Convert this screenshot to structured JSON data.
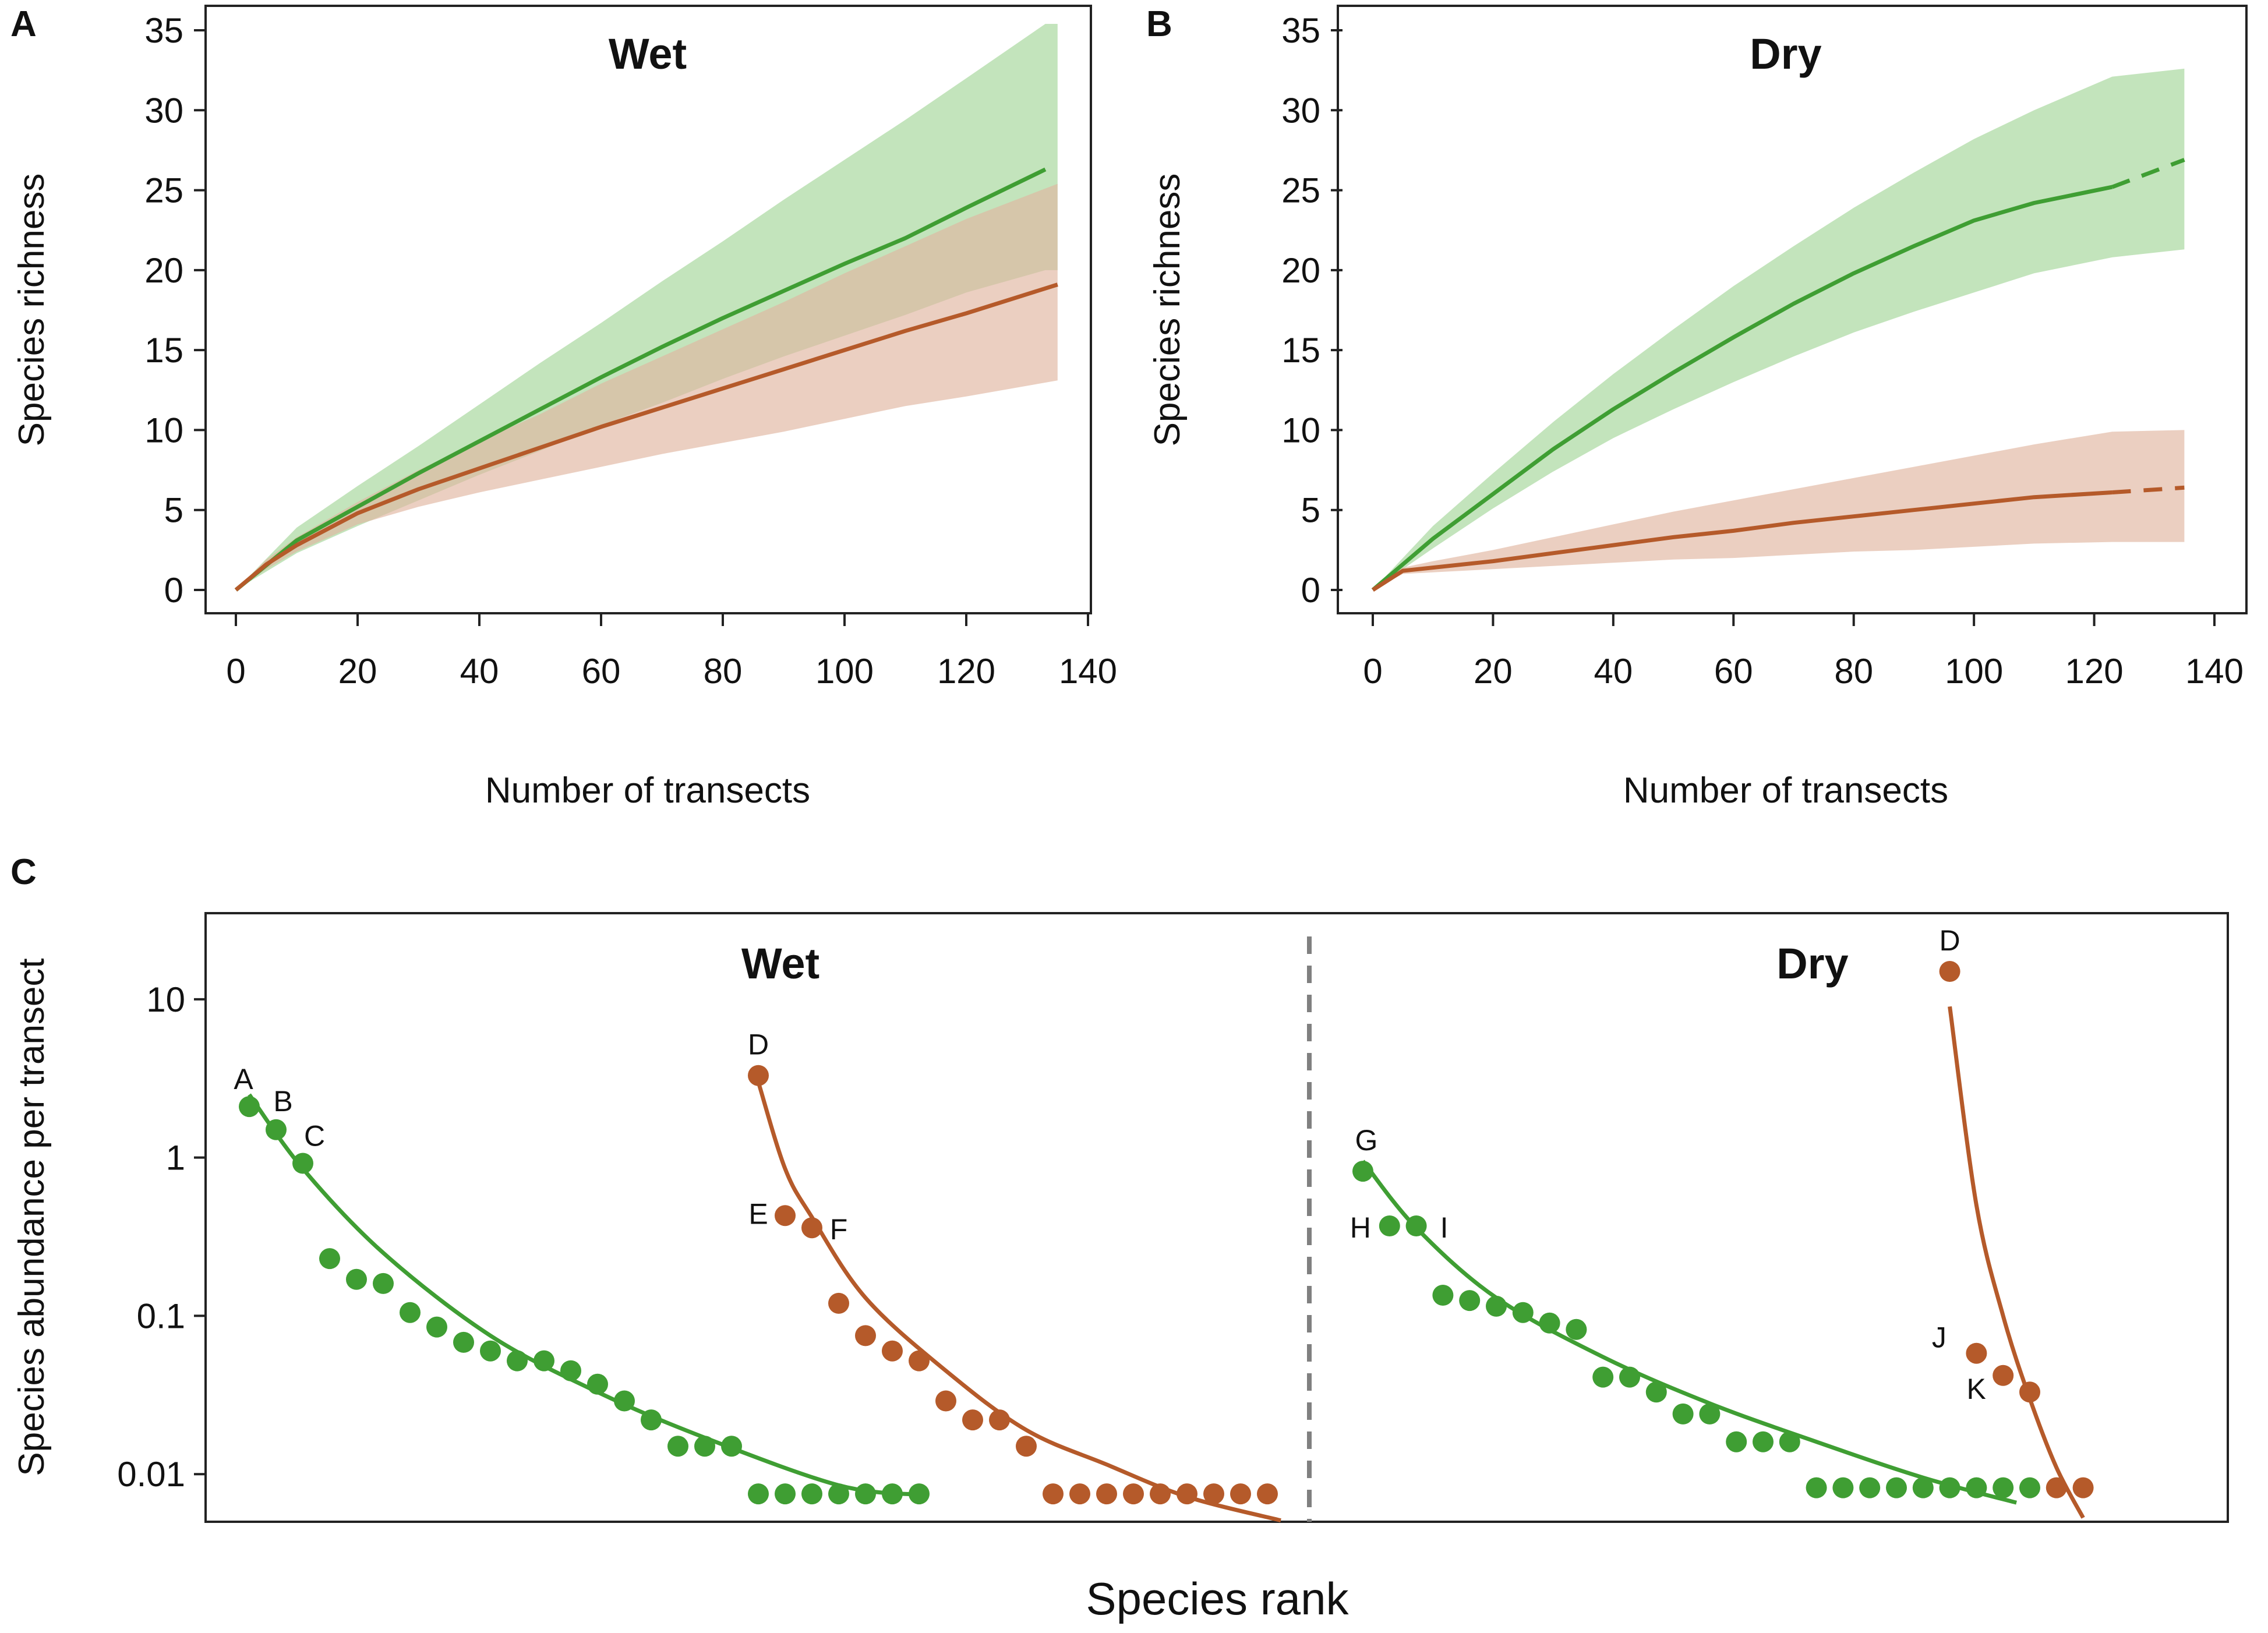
{
  "colors": {
    "forest": "#3f9e33",
    "nonforest": "#b55a2a",
    "forest_band": "#b9dfb0",
    "nonforest_band": "#e0b59f",
    "divider": "#808080"
  },
  "chart_data": [
    {
      "panel": "A",
      "type": "line",
      "title": "Wet",
      "xlabel": "Number of transects",
      "ylabel": "Species richness",
      "xlim": [
        0,
        140
      ],
      "ylim": [
        0,
        35
      ],
      "xticks": [
        0,
        20,
        40,
        60,
        80,
        100,
        120,
        140
      ],
      "yticks": [
        0,
        5,
        10,
        15,
        20,
        25,
        30,
        35
      ],
      "series": [
        {
          "name": "green",
          "x": [
            0,
            10,
            20,
            30,
            40,
            50,
            60,
            70,
            80,
            90,
            100,
            110,
            120,
            133
          ],
          "y": [
            0,
            3.1,
            5.2,
            7.3,
            9.3,
            11.3,
            13.3,
            15.2,
            17.0,
            18.7,
            20.4,
            22.0,
            23.9,
            26.3
          ],
          "lower": [
            0,
            2.3,
            4.0,
            5.6,
            7.2,
            8.7,
            10.3,
            11.7,
            13.2,
            14.6,
            15.9,
            17.2,
            18.6,
            20.0
          ],
          "upper": [
            0,
            3.9,
            6.5,
            9.0,
            11.6,
            14.2,
            16.7,
            19.3,
            21.8,
            24.4,
            26.9,
            29.4,
            32.0,
            35.4
          ],
          "ci_x_end": 135
        },
        {
          "name": "brown",
          "x": [
            0,
            5,
            10,
            20,
            30,
            40,
            50,
            60,
            70,
            80,
            90,
            100,
            110,
            120,
            135
          ],
          "y": [
            0,
            1.6,
            2.8,
            4.8,
            6.3,
            7.6,
            8.9,
            10.2,
            11.4,
            12.6,
            13.8,
            15.0,
            16.2,
            17.3,
            19.1
          ],
          "lower": [
            0,
            1.3,
            2.4,
            4.1,
            5.2,
            6.1,
            6.9,
            7.7,
            8.5,
            9.2,
            9.9,
            10.7,
            11.5,
            12.1,
            13.1
          ],
          "upper": [
            0,
            1.9,
            3.3,
            5.5,
            7.5,
            9.3,
            11.0,
            12.9,
            14.6,
            16.3,
            18.0,
            19.8,
            21.5,
            23.2,
            25.4
          ]
        }
      ]
    },
    {
      "panel": "B",
      "type": "line",
      "title": "Dry",
      "xlabel": "Number of transects",
      "ylabel": "Species richness",
      "xlim": [
        0,
        140
      ],
      "ylim": [
        0,
        35
      ],
      "xticks": [
        0,
        20,
        40,
        60,
        80,
        100,
        120,
        140
      ],
      "yticks": [
        0,
        5,
        10,
        15,
        20,
        25,
        30,
        35
      ],
      "series": [
        {
          "name": "green",
          "x": [
            0,
            10,
            20,
            30,
            40,
            50,
            60,
            70,
            80,
            90,
            100,
            110,
            123
          ],
          "y": [
            0,
            3.2,
            6.0,
            8.8,
            11.3,
            13.6,
            15.8,
            17.9,
            19.8,
            21.5,
            23.1,
            24.2,
            25.2
          ],
          "lower": [
            0,
            2.6,
            5.1,
            7.4,
            9.5,
            11.3,
            13.0,
            14.6,
            16.1,
            17.4,
            18.6,
            19.8,
            20.8
          ],
          "upper": [
            0,
            4.0,
            7.3,
            10.5,
            13.5,
            16.3,
            19.0,
            21.5,
            23.9,
            26.1,
            28.2,
            30.0,
            32.1
          ],
          "extrapolated_x": [
            123,
            135
          ],
          "extrapolated_y": [
            25.2,
            26.9
          ],
          "ci_x_end": 135,
          "ci_end": [
            21.3,
            32.6
          ]
        },
        {
          "name": "brown",
          "x": [
            0,
            5,
            10,
            20,
            30,
            40,
            50,
            60,
            70,
            80,
            90,
            100,
            110,
            123
          ],
          "y": [
            0,
            1.2,
            1.4,
            1.8,
            2.3,
            2.8,
            3.3,
            3.7,
            4.2,
            4.6,
            5.0,
            5.4,
            5.8,
            6.1
          ],
          "lower": [
            0,
            1.0,
            1.1,
            1.3,
            1.5,
            1.7,
            1.9,
            2.0,
            2.2,
            2.4,
            2.5,
            2.7,
            2.9,
            3.0
          ],
          "upper": [
            0,
            1.4,
            1.8,
            2.5,
            3.3,
            4.1,
            4.9,
            5.6,
            6.3,
            7.0,
            7.7,
            8.4,
            9.1,
            9.9
          ],
          "extrapolated_x": [
            123,
            135
          ],
          "extrapolated_y": [
            6.1,
            6.4
          ],
          "ci_x_end": 135,
          "ci_end": [
            3.0,
            10.0
          ]
        }
      ]
    },
    {
      "panel": "C",
      "type": "scatter",
      "xlabel": "Species rank",
      "ylabel": "Species abundance per transect",
      "yscale": "log",
      "ylim": [
        0.005,
        35
      ],
      "yticks": [
        0.01,
        0.1,
        1,
        10
      ],
      "ytick_labels": [
        "0.01",
        "0.1",
        "1",
        "10"
      ],
      "sections": [
        "Wet",
        "Dry"
      ],
      "series": [
        {
          "name": "Wet green",
          "section": "Wet",
          "color": "forest",
          "x": [
            1,
            2,
            3,
            4,
            5,
            6,
            7,
            8,
            9,
            10,
            11,
            12,
            13,
            14,
            15,
            16,
            17,
            18,
            19,
            20,
            21,
            22,
            23,
            24,
            25,
            26
          ],
          "y": [
            2.1,
            1.5,
            0.92,
            0.23,
            0.17,
            0.16,
            0.105,
            0.085,
            0.068,
            0.06,
            0.052,
            0.052,
            0.045,
            0.037,
            0.029,
            0.022,
            0.015,
            0.015,
            0.015,
            0.0075,
            0.0075,
            0.0075,
            0.0075,
            0.0075,
            0.0075,
            0.0075
          ],
          "labels": [
            "A",
            "B",
            "C",
            "",
            "",
            "",
            "",
            "",
            "",
            "",
            "",
            "",
            "",
            "",
            "",
            "",
            "",
            "",
            "",
            "",
            "",
            "",
            "",
            "",
            "",
            ""
          ],
          "fit_x": [
            1,
            3,
            6,
            10,
            14,
            18,
            23,
            26
          ],
          "fit_y": [
            2.5,
            0.85,
            0.25,
            0.075,
            0.033,
            0.017,
            0.0085,
            0.0074
          ]
        },
        {
          "name": "Wet brown",
          "section": "Wet",
          "color": "nonforest",
          "x": [
            20,
            21,
            22,
            23,
            24,
            25,
            26,
            27,
            28,
            29,
            30,
            31,
            32,
            33,
            34,
            35,
            36,
            37,
            38,
            39
          ],
          "y": [
            3.3,
            0.43,
            0.36,
            0.12,
            0.075,
            0.06,
            0.052,
            0.029,
            0.022,
            0.022,
            0.015,
            0.0075,
            0.0075,
            0.0075,
            0.0075,
            0.0075,
            0.0075,
            0.0075,
            0.0075,
            0.0075
          ],
          "labels": [
            "D",
            "E",
            "F",
            "",
            "",
            "",
            "",
            "",
            "",
            "",
            "",
            "",
            "",
            "",
            "",
            "",
            "",
            "",
            "",
            ""
          ],
          "fit_x": [
            20,
            21,
            22,
            24,
            27,
            30,
            33,
            36,
            39.5
          ],
          "fit_y": [
            3.0,
            0.85,
            0.42,
            0.13,
            0.045,
            0.019,
            0.0115,
            0.0072,
            0.0051
          ]
        },
        {
          "name": "Dry green",
          "section": "Dry",
          "color": "forest",
          "x": [
            1,
            2,
            3,
            4,
            5,
            6,
            7,
            8,
            9,
            10,
            11,
            12,
            13,
            14,
            15,
            16,
            17,
            18,
            19,
            20,
            21,
            22,
            23,
            24,
            25,
            26
          ],
          "y": [
            0.82,
            0.37,
            0.37,
            0.135,
            0.125,
            0.115,
            0.105,
            0.09,
            0.082,
            0.041,
            0.041,
            0.033,
            0.024,
            0.024,
            0.016,
            0.016,
            0.016,
            0.0082,
            0.0082,
            0.0082,
            0.0082,
            0.0082,
            0.0082,
            0.0082,
            0.0082,
            0.0082
          ],
          "labels": [
            "G",
            "H",
            "I",
            "",
            "",
            "",
            "",
            "",
            "",
            "",
            "",
            "",
            "",
            "",
            "",
            "",
            "",
            "",
            "",
            "",
            "",
            "",
            "",
            "",
            "",
            ""
          ],
          "fit_x": [
            1,
            3,
            6,
            10,
            14,
            18,
            22,
            25.5
          ],
          "fit_y": [
            0.95,
            0.36,
            0.13,
            0.055,
            0.028,
            0.016,
            0.0095,
            0.0066
          ]
        },
        {
          "name": "Dry brown",
          "section": "Dry",
          "color": "nonforest",
          "x": [
            23,
            24,
            25,
            26,
            27,
            28
          ],
          "y": [
            15,
            0.058,
            0.042,
            0.033,
            0.0082,
            0.0082
          ],
          "labels": [
            "D",
            "J",
            "K",
            "",
            "",
            ""
          ],
          "fit_x": [
            23,
            24,
            25,
            26,
            27,
            28
          ],
          "fit_y": [
            9,
            0.5,
            0.1,
            0.03,
            0.011,
            0.0053
          ]
        }
      ]
    }
  ],
  "text": {
    "panel_a": "A",
    "panel_b": "B",
    "panel_c": "C",
    "wet": "Wet",
    "dry": "Dry",
    "xlabel_ab": "Number of transects",
    "ylabel_ab": "Species richness",
    "xlabel_c": "Species rank",
    "ylabel_c": "Species abundance per transect"
  }
}
